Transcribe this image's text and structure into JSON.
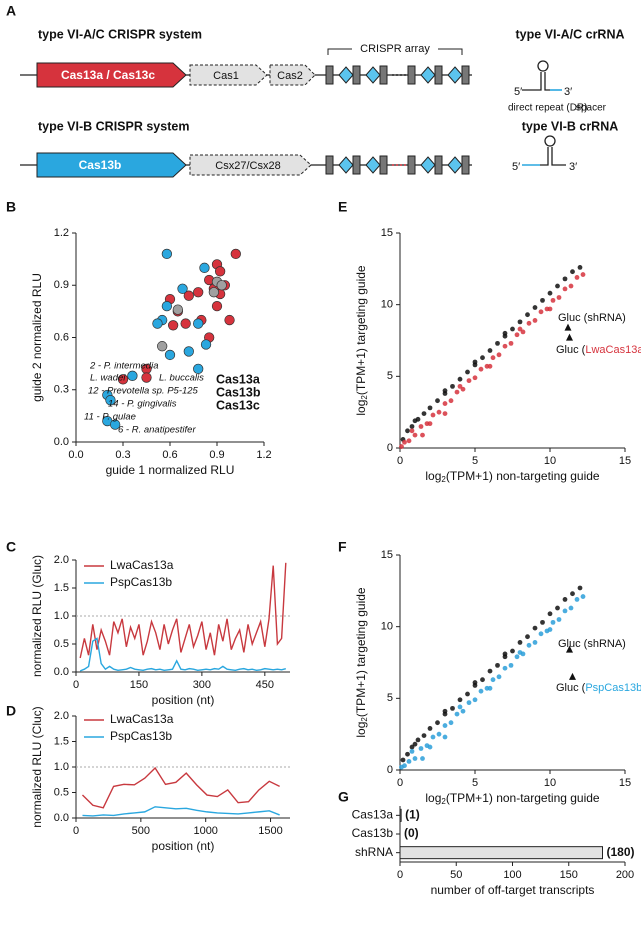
{
  "diagram": {
    "panel_label": "A",
    "systems": [
      {
        "title": "type VI-A/C CRISPR system",
        "genes": [
          "Cas13a / Cas13c",
          "Cas1",
          "Cas2"
        ],
        "array_label": "CRISPR array",
        "crrna_title": "type VI-A/C crRNA",
        "five": "5′",
        "three": "3′",
        "dr_label": "direct repeat (DR)",
        "spacer_label": "spacer"
      },
      {
        "title": "type VI-B CRISPR system",
        "genes": [
          "Cas13b",
          "Csx27/Csx28"
        ],
        "crrna_title": "type VI-B crRNA",
        "five": "5′",
        "three": "3′"
      }
    ]
  },
  "chart_data": [
    {
      "type": "scatter",
      "panel_label": "B",
      "x_label": "guide 1 normalized RLU",
      "y_label": "guide 2 normalized RLU",
      "xlim": [
        0,
        1.2
      ],
      "ylim": [
        0,
        1.2
      ],
      "xticks": [
        {
          "value": 0,
          "label": "0.0"
        },
        0.3,
        0.6,
        0.9,
        1.2
      ],
      "yticks": [
        {
          "value": 0,
          "label": "0.0"
        },
        0.3,
        0.6,
        0.9,
        1.2
      ],
      "series": [
        {
          "name": "Cas13a",
          "color": "#d6333d",
          "x": [
            1.02,
            0.9,
            0.92,
            0.85,
            0.88,
            0.78,
            0.72,
            0.6,
            0.65,
            0.92,
            0.9,
            0.7,
            0.62,
            0.8,
            0.98,
            0.85,
            0.45,
            0.45,
            0.3,
            0.95
          ],
          "values": [
            1.08,
            1.02,
            0.98,
            0.93,
            0.88,
            0.86,
            0.84,
            0.82,
            0.75,
            0.85,
            0.78,
            0.68,
            0.67,
            0.7,
            0.7,
            0.6,
            0.42,
            0.37,
            0.36,
            0.9
          ]
        },
        {
          "name": "Cas13b",
          "color": "#2aa7df",
          "x": [
            0.58,
            0.82,
            0.68,
            0.58,
            0.55,
            0.78,
            0.6,
            0.72,
            0.83,
            0.78,
            0.36,
            0.2,
            0.22,
            0.2,
            0.25,
            0.52
          ],
          "values": [
            1.08,
            1.0,
            0.88,
            0.78,
            0.7,
            0.68,
            0.5,
            0.52,
            0.56,
            0.42,
            0.38,
            0.27,
            0.24,
            0.12,
            0.1,
            0.68
          ]
        },
        {
          "name": "Cas13c",
          "color": "#a0a0a0",
          "x": [
            0.9,
            0.93,
            0.55,
            0.88,
            0.65
          ],
          "values": [
            0.92,
            0.9,
            0.55,
            0.86,
            0.76
          ]
        }
      ],
      "annotations": [
        {
          "text": "2 - P. intermedia",
          "color": "#2aa7df"
        },
        {
          "text": "L. wadei",
          "color": "#d6333d"
        },
        {
          "text": "L. buccalis",
          "color": "#d6333d"
        },
        {
          "text": "12 - Prevotella sp. P5-125",
          "color": "#2aa7df"
        },
        {
          "text": "14 - P. gingivalis",
          "color": "#2aa7df"
        },
        {
          "text": "11 - P. gulae",
          "color": "#2aa7df"
        },
        {
          "text": "6 - R. anatipestifer",
          "color": "#2aa7df"
        }
      ]
    },
    {
      "type": "scatter",
      "panel_label": "E",
      "x_label": {
        "pre": "log",
        "sub": "2",
        "post": "(TPM+1) non-targeting guide"
      },
      "y_label": {
        "pre": "log",
        "sub": "2",
        "post": "(TPM+1) targeting guide"
      },
      "xlim": [
        0,
        15
      ],
      "ylim": [
        0,
        15
      ],
      "xticks": [
        0,
        5,
        10,
        15
      ],
      "yticks": [
        0,
        5,
        10,
        15
      ],
      "series": [
        {
          "color": "#111111",
          "x": [
            0.2,
            0.5,
            0.8,
            1.2,
            1.6,
            2,
            2.5,
            3,
            3.5,
            4,
            4.5,
            5,
            5.5,
            6,
            6.5,
            7,
            7.5,
            8,
            8.5,
            9,
            9.5,
            10,
            10.5,
            11,
            11.5,
            12,
            1,
            3,
            5,
            7
          ],
          "values": [
            0.6,
            1.2,
            1.5,
            2,
            2.4,
            2.8,
            3.3,
            3.8,
            4.3,
            4.8,
            5.3,
            5.8,
            6.3,
            6.8,
            7.3,
            7.8,
            8.3,
            8.8,
            9.3,
            9.8,
            10.3,
            10.8,
            11.3,
            11.8,
            12.3,
            12.6,
            1.9,
            4,
            6,
            8
          ]
        },
        {
          "color": "#d6333d",
          "x": [
            0.1,
            0.3,
            0.6,
            1,
            1.4,
            1.8,
            2.2,
            2.6,
            3,
            3.4,
            3.8,
            4.2,
            4.6,
            5,
            5.4,
            5.8,
            6.2,
            6.6,
            7,
            7.4,
            7.8,
            8.2,
            8.6,
            9,
            9.4,
            9.8,
            10.2,
            10.6,
            11,
            11.4,
            11.8,
            12.2,
            2,
            4,
            6,
            8,
            10,
            1.5,
            0.8,
            3
          ],
          "values": [
            0.1,
            0.4,
            0.5,
            0.9,
            1.5,
            1.7,
            2.3,
            2.5,
            3.1,
            3.3,
            3.9,
            4.1,
            4.7,
            4.9,
            5.5,
            5.7,
            6.3,
            6.5,
            7.1,
            7.3,
            7.9,
            8.1,
            8.7,
            8.9,
            9.5,
            9.7,
            10.3,
            10.5,
            11.1,
            11.3,
            11.9,
            12.1,
            1.7,
            4.3,
            5.7,
            8.3,
            9.7,
            0.9,
            1.2,
            2.4
          ]
        },
        {
          "color": "#111111",
          "marker": "triangle",
          "x": [
            11.2,
            11.3
          ],
          "values": [
            8.4,
            7.7
          ]
        }
      ],
      "annotations": [
        {
          "text": "Gluc (shRNA)"
        },
        {
          "pre": "Gluc (",
          "highlight": "LwaCas13a",
          "post": ")",
          "color": "#d6333d"
        }
      ]
    },
    {
      "type": "line",
      "panel_label": "C",
      "x_label": "position (nt)",
      "y_label": "normalized RLU (Gluc)",
      "xlim": [
        0,
        510
      ],
      "ylim": [
        0,
        2
      ],
      "xticks": [
        0,
        150,
        300,
        450
      ],
      "yticks": [
        {
          "value": 0,
          "label": "0.0"
        },
        0.5,
        {
          "value": 1,
          "label": "1.0"
        },
        1.5,
        {
          "value": 2,
          "label": "2.0"
        }
      ],
      "ref_line": 1,
      "x": [
        10,
        20,
        30,
        40,
        50,
        60,
        70,
        80,
        90,
        100,
        110,
        120,
        130,
        140,
        150,
        160,
        170,
        180,
        190,
        200,
        210,
        220,
        230,
        240,
        250,
        260,
        270,
        280,
        290,
        300,
        310,
        320,
        330,
        340,
        350,
        360,
        370,
        380,
        390,
        400,
        410,
        420,
        430,
        440,
        450,
        460,
        470,
        480,
        490,
        500
      ],
      "series": [
        {
          "name": "LwaCas13a",
          "color": "#c8393f",
          "values": [
            0.25,
            0.6,
            0.3,
            0.85,
            0.4,
            0.75,
            0.55,
            0.3,
            0.9,
            0.7,
            0.95,
            0.45,
            0.8,
            0.6,
            0.85,
            0.3,
            0.55,
            0.9,
            0.7,
            0.4,
            0.85,
            0.5,
            0.75,
            0.95,
            0.35,
            0.6,
            0.85,
            0.45,
            0.65,
            0.9,
            0.4,
            0.7,
            0.3,
            0.85,
            0.55,
            0.95,
            0.4,
            0.6,
            0.75,
            0.35,
            0.85,
            0.5,
            0.7,
            0.9,
            0.45,
            0.95,
            1.9,
            0.5,
            0.6,
            1.95
          ]
        },
        {
          "name": "PspCas13b",
          "color": "#2aa7df",
          "values": [
            0.02,
            0.05,
            0.1,
            0.55,
            0.6,
            0.15,
            0.05,
            0.1,
            0.05,
            0.03,
            0.04,
            0.05,
            0.08,
            0.05,
            0.04,
            0.03,
            0.05,
            0.06,
            0.04,
            0.05,
            0.03,
            0.04,
            0.05,
            0.2,
            0.05,
            0.04,
            0.06,
            0.05,
            0.03,
            0.04,
            0.05,
            0.04,
            0.06,
            0.05,
            0.1,
            0.05,
            0.04,
            0.03,
            0.05,
            0.06,
            0.04,
            0.05,
            0.03,
            0.04,
            0.06,
            0.05,
            0.04,
            0.05,
            0.04,
            0.06
          ]
        }
      ]
    },
    {
      "type": "scatter",
      "panel_label": "F",
      "x_label": {
        "pre": "log",
        "sub": "2",
        "post": "(TPM+1) non-targeting guide"
      },
      "y_label": {
        "pre": "log",
        "sub": "2",
        "post": "(TPM+1) targeting guide"
      },
      "xlim": [
        0,
        15
      ],
      "ylim": [
        0,
        15
      ],
      "xticks": [
        0,
        5,
        10,
        15
      ],
      "yticks": [
        0,
        5,
        10,
        15
      ],
      "series": [
        {
          "color": "#111111",
          "x": [
            0.2,
            0.5,
            0.8,
            1.2,
            1.6,
            2,
            2.5,
            3,
            3.5,
            4,
            4.5,
            5,
            5.5,
            6,
            6.5,
            7,
            7.5,
            8,
            8.5,
            9,
            9.5,
            10,
            10.5,
            11,
            11.5,
            12,
            1,
            3,
            5,
            7
          ],
          "values": [
            0.7,
            1.1,
            1.6,
            2.1,
            2.4,
            2.9,
            3.3,
            3.9,
            4.3,
            4.9,
            5.3,
            5.9,
            6.3,
            6.9,
            7.3,
            7.9,
            8.3,
            8.9,
            9.3,
            9.9,
            10.3,
            10.9,
            11.3,
            11.9,
            12.3,
            12.7,
            1.8,
            4.1,
            6.1,
            8.1
          ]
        },
        {
          "color": "#2c9fd9",
          "x": [
            0.1,
            0.3,
            0.6,
            1,
            1.4,
            1.8,
            2.2,
            2.6,
            3,
            3.4,
            3.8,
            4.2,
            4.6,
            5,
            5.4,
            5.8,
            6.2,
            6.6,
            7,
            7.4,
            7.8,
            8.2,
            8.6,
            9,
            9.4,
            9.8,
            10.2,
            10.6,
            11,
            11.4,
            11.8,
            12.2,
            2,
            4,
            6,
            8,
            10,
            1.5,
            0.8,
            3
          ],
          "values": [
            0.2,
            0.3,
            0.6,
            0.8,
            1.5,
            1.7,
            2.3,
            2.5,
            3.1,
            3.3,
            3.9,
            4.1,
            4.7,
            4.9,
            5.5,
            5.7,
            6.3,
            6.5,
            7.1,
            7.3,
            7.9,
            8.1,
            8.7,
            8.9,
            9.5,
            9.7,
            10.3,
            10.5,
            11.1,
            11.3,
            11.9,
            12.1,
            1.6,
            4.4,
            5.7,
            8.2,
            9.8,
            0.8,
            1.3,
            2.3
          ]
        },
        {
          "color": "#111111",
          "marker": "triangle",
          "x": [
            11.3,
            11.5
          ],
          "values": [
            8.4,
            6.5
          ]
        }
      ],
      "annotations": [
        {
          "text": "Gluc (shRNA)"
        },
        {
          "pre": "Gluc (",
          "highlight": "PspCas13b",
          "post": ")",
          "color": "#2aa7df"
        }
      ]
    },
    {
      "type": "line",
      "panel_label": "D",
      "x_label": "position (nt)",
      "y_label": "normalized RLU (Cluc)",
      "xlim": [
        0,
        1650
      ],
      "ylim": [
        0,
        2
      ],
      "xticks": [
        0,
        500,
        1000,
        1500
      ],
      "yticks": [
        {
          "value": 0,
          "label": "0.0"
        },
        0.5,
        {
          "value": 1,
          "label": "1.0"
        },
        1.5,
        {
          "value": 2,
          "label": "2.0"
        }
      ],
      "ref_line": 1,
      "x": [
        50,
        130,
        210,
        290,
        370,
        450,
        530,
        610,
        690,
        770,
        850,
        930,
        1010,
        1090,
        1170,
        1250,
        1330,
        1410,
        1490,
        1570
      ],
      "series": [
        {
          "name": "LwaCas13a",
          "color": "#c8393f",
          "values": [
            0.45,
            0.25,
            0.2,
            0.62,
            0.66,
            0.65,
            0.78,
            0.98,
            0.66,
            0.7,
            0.88,
            0.65,
            0.45,
            0.42,
            0.55,
            0.3,
            0.32,
            0.55,
            0.72,
            0.62
          ]
        },
        {
          "name": "PspCas13b",
          "color": "#2aa7df",
          "values": [
            0.05,
            0.04,
            0.06,
            0.05,
            0.08,
            0.1,
            0.12,
            0.22,
            0.2,
            0.18,
            0.19,
            0.15,
            0.12,
            0.1,
            0.09,
            0.08,
            0.1,
            0.12,
            0.14,
            0.06
          ]
        }
      ]
    },
    {
      "type": "bar",
      "panel_label": "G",
      "x_label": "number of off-target transcripts",
      "categories": [
        "Cas13a",
        "Cas13b",
        "shRNA"
      ],
      "values": [
        1,
        0,
        180
      ],
      "value_labels": [
        "(1)",
        "(0)",
        "(180)"
      ],
      "label_colors": [
        "#d6333d",
        "#2aa7df",
        "#111111"
      ],
      "color": "#e2e2e2",
      "xlim": [
        0,
        200
      ],
      "xticks": [
        0,
        50,
        100,
        150,
        200
      ]
    }
  ]
}
